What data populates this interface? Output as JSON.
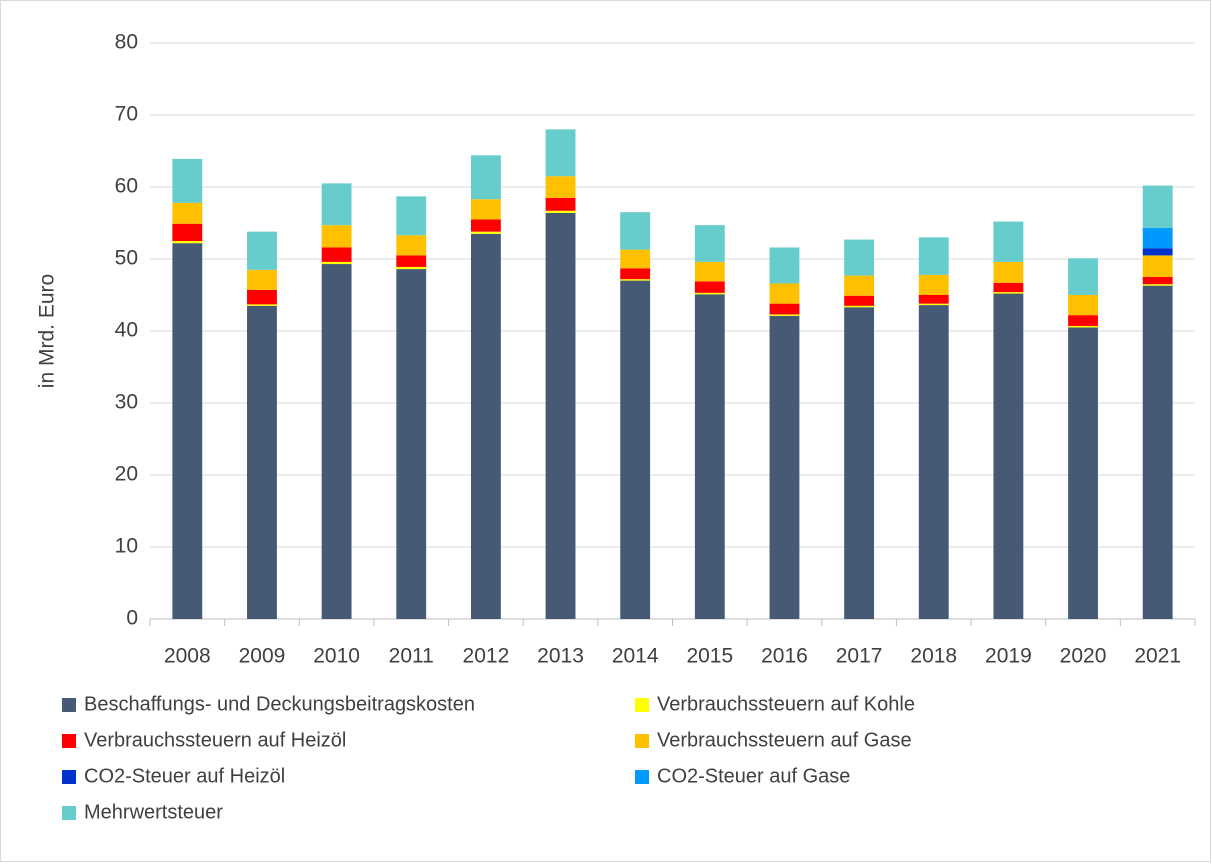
{
  "chart_data": {
    "type": "stacked_bar",
    "y_label": "in Mrd. Euro",
    "categories": [
      "2008",
      "2009",
      "2010",
      "2011",
      "2012",
      "2013",
      "2014",
      "2015",
      "2016",
      "2017",
      "2018",
      "2019",
      "2020",
      "2021"
    ],
    "series": [
      {
        "name": "Beschaffungs- und Deckungsbeitragskosten",
        "color": "#465a75",
        "values": [
          52.2,
          43.5,
          49.3,
          48.6,
          53.5,
          56.4,
          47.0,
          45.1,
          42.1,
          43.3,
          43.6,
          45.2,
          40.5,
          46.3
        ]
      },
      {
        "name": "Verbrauchssteuern auf Kohle",
        "color": "#ffff00",
        "values": [
          0.3,
          0.2,
          0.3,
          0.3,
          0.3,
          0.3,
          0.2,
          0.2,
          0.2,
          0.2,
          0.2,
          0.2,
          0.2,
          0.2
        ]
      },
      {
        "name": "Verbrauchssteuern auf Heizöl",
        "color": "#ff0000",
        "values": [
          2.4,
          2.0,
          2.0,
          1.6,
          1.7,
          1.8,
          1.5,
          1.6,
          1.5,
          1.4,
          1.2,
          1.3,
          1.5,
          1.0
        ]
      },
      {
        "name": "Verbrauchssteuern auf Gase",
        "color": "#ffc000",
        "values": [
          2.9,
          2.8,
          3.1,
          2.8,
          2.8,
          3.0,
          2.6,
          2.7,
          2.8,
          2.8,
          2.8,
          2.9,
          2.8,
          3.0
        ]
      },
      {
        "name": "CO2-Steuer auf Heizöl",
        "color": "#0033cc",
        "values": [
          0,
          0,
          0,
          0,
          0,
          0,
          0,
          0,
          0,
          0,
          0,
          0,
          0,
          1.0
        ]
      },
      {
        "name": "CO2-Steuer auf Gase",
        "color": "#0099ff",
        "values": [
          0,
          0,
          0,
          0,
          0,
          0,
          0,
          0,
          0,
          0,
          0,
          0,
          0,
          2.8
        ]
      },
      {
        "name": "Mehrwertsteuer",
        "color": "#66cccc",
        "values": [
          6.1,
          5.3,
          5.8,
          5.4,
          6.1,
          6.5,
          5.2,
          5.1,
          5.0,
          5.0,
          5.2,
          5.6,
          5.1,
          5.9
        ]
      }
    ],
    "ylim": [
      0,
      80
    ],
    "yticks": [
      0,
      10,
      20,
      30,
      40,
      50,
      60,
      70,
      80
    ],
    "grid": true
  }
}
